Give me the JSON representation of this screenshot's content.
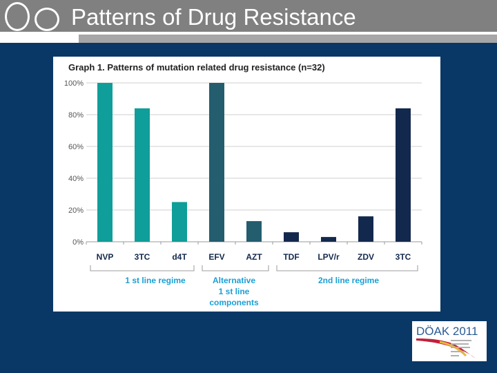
{
  "slide": {
    "title": "Patterns of Drug Resistance"
  },
  "chart_data": {
    "type": "bar",
    "title": "Graph 1. Patterns of mutation related drug resistance (n=32)",
    "categories": [
      "NVP",
      "3TC",
      "d4T",
      "EFV",
      "AZT",
      "TDF",
      "LPV/r",
      "ZDV",
      "3TC"
    ],
    "values": [
      100,
      84,
      25,
      100,
      13,
      6,
      3,
      16,
      84
    ],
    "bar_colors": [
      "#0f9e99",
      "#0f9e99",
      "#0f9e99",
      "#235d6e",
      "#235d6e",
      "#13284d",
      "#13284d",
      "#13284d",
      "#13284d"
    ],
    "yticks": [
      "0%",
      "20%",
      "40%",
      "60%",
      "80%",
      "100%"
    ],
    "ylim": [
      0,
      100
    ],
    "grid": true,
    "groups": [
      {
        "label_lines": [
          "1 st line regime"
        ],
        "color": "#1a9fd6"
      },
      {
        "label_lines": [
          "Alternative",
          "1 st line",
          "components"
        ],
        "color": "#1a9fd6"
      },
      {
        "label_lines": [
          "2nd line regime"
        ],
        "color": "#1a9fd6"
      }
    ]
  },
  "logo": {
    "name": "DÖAK 2011",
    "name_color": "#2a5a96"
  }
}
